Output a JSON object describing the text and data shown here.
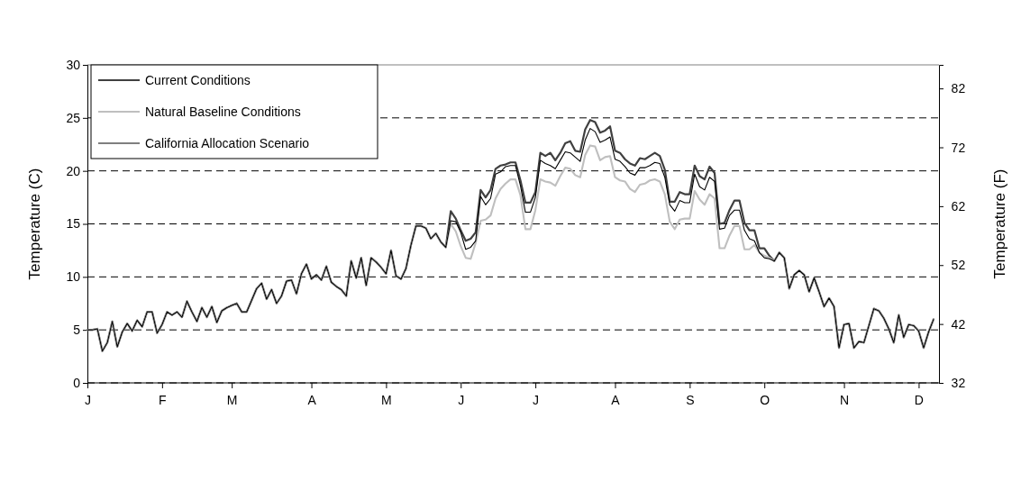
{
  "chart_data": {
    "type": "line",
    "ylabel": "Temperature (C)",
    "y2label": "Temperature (F)",
    "categories": [
      "J",
      null,
      null,
      null,
      null,
      null,
      null,
      null,
      null,
      null,
      null,
      null,
      null,
      null,
      null,
      "F",
      null,
      null,
      null,
      null,
      null,
      null,
      null,
      null,
      null,
      null,
      null,
      null,
      null,
      "M",
      null,
      null,
      null,
      null,
      null,
      null,
      null,
      null,
      null,
      null,
      null,
      null,
      null,
      null,
      null,
      "A",
      null,
      null,
      null,
      null,
      null,
      null,
      null,
      null,
      null,
      null,
      null,
      null,
      null,
      null,
      "M",
      null,
      null,
      null,
      null,
      null,
      null,
      null,
      null,
      null,
      null,
      null,
      null,
      null,
      null,
      "J",
      null,
      null,
      null,
      null,
      null,
      null,
      null,
      null,
      null,
      null,
      null,
      null,
      null,
      null,
      "J",
      null,
      null,
      null,
      null,
      null,
      null,
      null,
      null,
      null,
      null,
      null,
      null,
      null,
      null,
      null,
      "A",
      null,
      null,
      null,
      null,
      null,
      null,
      null,
      null,
      null,
      null,
      null,
      null,
      null,
      null,
      "S",
      null,
      null,
      null,
      null,
      null,
      null,
      null,
      null,
      null,
      null,
      null,
      null,
      null,
      null,
      "O",
      null,
      null,
      null,
      null,
      null,
      null,
      null,
      null,
      null,
      null,
      null,
      null,
      null,
      null,
      null,
      "N",
      null,
      null,
      null,
      null,
      null,
      null,
      null,
      null,
      null,
      null,
      null,
      null,
      null,
      null,
      "D",
      null,
      null,
      null
    ],
    "ylim": [
      0,
      30
    ],
    "yticks": [
      0,
      5,
      10,
      15,
      20,
      25,
      30
    ],
    "y2lim": [
      32,
      86
    ],
    "y2ticks": [
      32,
      42,
      52,
      62,
      72,
      82
    ],
    "grid": "y",
    "legend": "top left",
    "series": [
      {
        "name": "Current Conditions",
        "color": "#404040",
        "values": [
          5.0,
          5.0,
          5.1,
          3.0,
          3.8,
          5.8,
          3.4,
          4.8,
          5.6,
          4.9,
          5.9,
          5.3,
          6.7,
          6.7,
          4.7,
          5.5,
          6.7,
          6.4,
          6.7,
          6.2,
          7.7,
          6.7,
          5.8,
          7.1,
          6.2,
          7.2,
          5.7,
          6.8,
          7.1,
          7.3,
          7.5,
          6.7,
          6.7,
          7.8,
          8.9,
          9.4,
          7.9,
          8.8,
          7.5,
          8.2,
          9.6,
          9.7,
          8.4,
          10.3,
          11.2,
          9.8,
          10.2,
          9.7,
          11.0,
          9.5,
          9.1,
          8.8,
          8.2,
          11.5,
          9.9,
          11.8,
          9.2,
          11.8,
          11.4,
          10.9,
          10.3,
          12.5,
          10.1,
          9.8,
          10.8,
          13.0,
          14.8,
          14.8,
          14.6,
          13.6,
          14.1,
          13.3,
          12.8,
          16.2,
          15.5,
          14.4,
          13.4,
          13.6,
          14.2,
          18.2,
          17.5,
          18.2,
          20.2,
          20.5,
          20.6,
          20.8,
          20.8,
          19.1,
          17.0,
          17.0,
          18.0,
          21.7,
          21.4,
          21.7,
          21.0,
          21.7,
          22.6,
          22.8,
          21.9,
          21.8,
          23.9,
          24.8,
          24.6,
          23.6,
          23.8,
          24.2,
          21.9,
          21.7,
          21.1,
          20.7,
          20.5,
          21.2,
          21.1,
          21.4,
          21.7,
          21.4,
          20.1,
          17.1,
          17.1,
          18.0,
          17.8,
          17.8,
          20.5,
          19.5,
          19.2,
          20.4,
          19.8,
          15.0,
          15.1,
          16.3,
          17.2,
          17.2,
          15.1,
          14.4,
          14.4,
          12.7,
          12.7,
          12.0,
          11.5,
          12.3,
          11.8,
          8.9,
          10.2,
          10.6,
          10.2,
          8.6,
          9.9,
          8.6,
          7.2,
          8.0,
          7.2,
          3.3,
          5.5,
          5.6,
          3.3,
          3.9,
          3.8,
          5.4,
          7.0,
          6.8,
          6.1,
          5.1,
          3.8,
          6.4,
          4.3,
          5.5,
          5.4,
          4.9,
          3.3,
          4.8,
          6.0
        ]
      },
      {
        "name": "Natural Baseline Conditions",
        "color": "#bfbfbf",
        "values": [
          5.0,
          5.0,
          5.1,
          3.0,
          3.8,
          5.8,
          3.4,
          4.8,
          5.6,
          4.9,
          5.9,
          5.3,
          6.7,
          6.7,
          4.7,
          5.5,
          6.7,
          6.4,
          6.7,
          6.2,
          7.7,
          6.7,
          5.8,
          7.1,
          6.2,
          7.2,
          5.7,
          6.8,
          7.1,
          7.3,
          7.5,
          6.7,
          6.7,
          7.8,
          8.9,
          9.4,
          7.9,
          8.8,
          7.5,
          8.2,
          9.6,
          9.7,
          8.4,
          10.3,
          11.2,
          9.8,
          10.2,
          9.7,
          11.0,
          9.5,
          9.1,
          8.8,
          8.2,
          11.5,
          9.9,
          11.8,
          9.2,
          11.8,
          11.4,
          10.9,
          10.3,
          12.5,
          10.1,
          9.8,
          10.8,
          13.0,
          14.8,
          14.8,
          14.6,
          13.6,
          14.1,
          13.3,
          12.8,
          15.0,
          14.3,
          12.9,
          11.8,
          11.7,
          13.2,
          15.3,
          15.4,
          15.8,
          17.4,
          18.3,
          18.8,
          19.2,
          19.2,
          17.7,
          14.5,
          14.5,
          16.3,
          19.2,
          19.0,
          18.9,
          18.6,
          19.5,
          20.3,
          20.2,
          19.6,
          19.4,
          21.5,
          22.4,
          22.3,
          21.0,
          21.3,
          21.4,
          19.4,
          19.1,
          19.0,
          18.3,
          18.0,
          18.7,
          18.8,
          19.1,
          19.2,
          19.0,
          17.8,
          15.2,
          14.5,
          15.4,
          15.5,
          15.5,
          18.1,
          17.3,
          16.8,
          17.8,
          17.4,
          12.7,
          12.7,
          13.9,
          14.8,
          14.8,
          12.6,
          12.6,
          13.0,
          12.3,
          12.0,
          11.8,
          11.5,
          12.3,
          11.8,
          8.9,
          10.2,
          10.6,
          10.2,
          8.6,
          9.9,
          8.6,
          7.2,
          8.0,
          7.2,
          3.3,
          5.5,
          5.6,
          3.3,
          3.9,
          3.8,
          5.4,
          7.0,
          6.8,
          6.1,
          5.1,
          3.8,
          6.4,
          4.3,
          5.5,
          5.4,
          4.9,
          3.3,
          4.8,
          6.0
        ]
      },
      {
        "name": "California Allocation Scenario",
        "color": "#000000",
        "values": [
          5.0,
          5.0,
          5.1,
          3.0,
          3.8,
          5.8,
          3.4,
          4.8,
          5.6,
          4.9,
          5.9,
          5.3,
          6.7,
          6.7,
          4.7,
          5.5,
          6.7,
          6.4,
          6.7,
          6.2,
          7.7,
          6.7,
          5.8,
          7.1,
          6.2,
          7.2,
          5.7,
          6.8,
          7.1,
          7.3,
          7.5,
          6.7,
          6.7,
          7.8,
          8.9,
          9.4,
          7.9,
          8.8,
          7.5,
          8.2,
          9.6,
          9.7,
          8.4,
          10.3,
          11.2,
          9.8,
          10.2,
          9.7,
          11.0,
          9.5,
          9.1,
          8.8,
          8.2,
          11.5,
          9.9,
          11.8,
          9.2,
          11.8,
          11.4,
          10.9,
          10.3,
          12.5,
          10.1,
          9.8,
          10.8,
          13.0,
          14.8,
          14.8,
          14.6,
          13.6,
          14.1,
          13.3,
          12.8,
          15.3,
          15.2,
          14.2,
          12.6,
          12.8,
          13.4,
          17.6,
          16.8,
          17.4,
          19.7,
          19.9,
          20.4,
          20.5,
          20.5,
          18.6,
          16.1,
          16.1,
          17.5,
          21.0,
          20.7,
          20.5,
          20.2,
          21.0,
          21.8,
          21.7,
          21.3,
          20.9,
          22.9,
          24.0,
          23.7,
          22.7,
          22.9,
          23.2,
          21.1,
          20.9,
          20.4,
          19.8,
          19.6,
          20.3,
          20.3,
          20.5,
          20.8,
          20.7,
          19.4,
          16.8,
          16.2,
          17.2,
          17.0,
          17.0,
          19.7,
          18.5,
          18.2,
          19.4,
          19.0,
          14.5,
          14.6,
          15.8,
          16.3,
          16.3,
          14.4,
          13.6,
          13.4,
          12.3,
          11.8,
          11.7,
          11.5,
          12.3,
          11.8,
          8.9,
          10.2,
          10.6,
          10.2,
          8.6,
          9.9,
          8.6,
          7.2,
          8.0,
          7.2,
          3.3,
          5.5,
          5.6,
          3.3,
          3.9,
          3.8,
          5.4,
          7.0,
          6.8,
          6.1,
          5.1,
          3.8,
          6.4,
          4.3,
          5.5,
          5.4,
          4.9,
          3.3,
          4.8,
          6.0
        ]
      }
    ]
  }
}
